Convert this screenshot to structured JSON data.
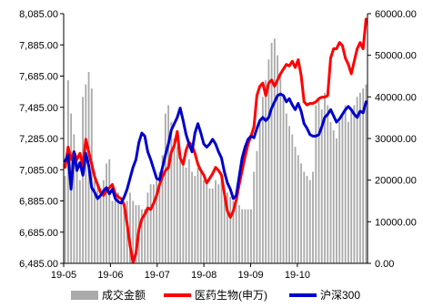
{
  "chart_data": {
    "type": "bar+line",
    "title": "",
    "x_tick_labels": [
      "19-05",
      "19-06",
      "19-07",
      "19-08",
      "19-09",
      "19-10"
    ],
    "y_left": {
      "min": 6485,
      "max": 8085,
      "ticks": [
        6485,
        6685,
        6885,
        7085,
        7285,
        7485,
        7685,
        7885,
        8085
      ],
      "tick_labels": [
        "6,485.00",
        "6,685.00",
        "6,885.00",
        "7,085.00",
        "7,285.00",
        "7,485.00",
        "7,685.00",
        "7,885.00",
        "8,085.00"
      ]
    },
    "y_right": {
      "min": 0,
      "max": 60000,
      "ticks": [
        0,
        10000,
        20000,
        30000,
        40000,
        50000,
        60000
      ],
      "tick_labels": [
        "0.00",
        "10000.00",
        "20000.00",
        "30000.00",
        "40000.00",
        "50000.00",
        "60000.00"
      ]
    },
    "legend": [
      {
        "name": "成交金额",
        "color": "#aaaaaa",
        "kind": "bar"
      },
      {
        "name": "医药生物(申万)",
        "color": "#ff0000",
        "kind": "line"
      },
      {
        "name": "沪深300",
        "color": "#0000cc",
        "kind": "line"
      }
    ],
    "legend_position": "bottom",
    "series": [
      {
        "name": "成交金额",
        "type": "bar",
        "axis": "right",
        "color": "#aaaaaa",
        "values": [
          21000,
          44000,
          36000,
          31000,
          25000,
          20000,
          40000,
          43000,
          46000,
          42000,
          22000,
          19000,
          18000,
          20000,
          24000,
          25000,
          15000,
          16000,
          17000,
          14000,
          13000,
          15000,
          17000,
          15000,
          14000,
          14000,
          13000,
          13000,
          17000,
          19000,
          19000,
          21000,
          22000,
          26000,
          36000,
          38000,
          34000,
          30000,
          28000,
          26000,
          24000,
          23000,
          25000,
          22000,
          21000,
          23000,
          22000,
          20000,
          19000,
          18000,
          18000,
          20000,
          19000,
          20000,
          17000,
          17000,
          16000,
          15000,
          14000,
          14000,
          13000,
          13000,
          13000,
          13000,
          22000,
          27000,
          34000,
          40000,
          44000,
          49000,
          53000,
          54000,
          50000,
          45000,
          40000,
          36000,
          33000,
          31000,
          28000,
          26000,
          24000,
          22000,
          21000,
          20000,
          22000,
          38000,
          40000,
          37000,
          41000,
          38000,
          34000,
          32000,
          30000,
          34000,
          36000,
          38000,
          34000,
          37000,
          38000,
          40000,
          41000,
          42000,
          43000
        ]
      },
      {
        "name": "医药生物(申万)",
        "type": "line",
        "axis": "left",
        "color": "#ff0000",
        "values": [
          7100,
          7230,
          7150,
          7200,
          7150,
          7190,
          7110,
          7280,
          7200,
          7120,
          7040,
          6990,
          6940,
          6920,
          6950,
          6970,
          6990,
          6930,
          6910,
          6900,
          6860,
          6740,
          6600,
          6490,
          6550,
          6700,
          6770,
          6800,
          6840,
          6830,
          6870,
          6920,
          6990,
          7040,
          7080,
          7100,
          7200,
          7240,
          7330,
          7160,
          7120,
          7210,
          7260,
          7240,
          7190,
          7120,
          7080,
          7050,
          7000,
          7030,
          7060,
          7100,
          7080,
          7050,
          6930,
          6820,
          6780,
          6820,
          6890,
          6990,
          7080,
          7170,
          7250,
          7300,
          7360,
          7560,
          7620,
          7640,
          7560,
          7640,
          7660,
          7620,
          7660,
          7700,
          7730,
          7760,
          7750,
          7780,
          7740,
          7790,
          7690,
          7520,
          7500,
          7510,
          7510,
          7520,
          7540,
          7550,
          7550,
          7560,
          7800,
          7860,
          7860,
          7900,
          7880,
          7800,
          7760,
          7700,
          7780,
          7860,
          7900,
          7860,
          8050
        ]
      },
      {
        "name": "沪深300",
        "type": "line",
        "axis": "left",
        "color": "#0000cc",
        "values": [
          7140,
          7180,
          6960,
          7200,
          7080,
          7130,
          7050,
          7190,
          7110,
          6970,
          6940,
          6900,
          6920,
          6950,
          6970,
          6930,
          6960,
          6900,
          6880,
          6870,
          6910,
          6960,
          7030,
          7100,
          7150,
          7260,
          7320,
          7300,
          7200,
          7150,
          7090,
          7030,
          7020,
          7100,
          7180,
          7250,
          7340,
          7380,
          7420,
          7480,
          7400,
          7310,
          7250,
          7200,
          7320,
          7380,
          7320,
          7250,
          7230,
          7250,
          7280,
          7250,
          7200,
          7160,
          7070,
          7000,
          6960,
          6900,
          6920,
          7040,
          7160,
          7230,
          7280,
          7300,
          7290,
          7350,
          7400,
          7420,
          7400,
          7420,
          7480,
          7520,
          7560,
          7570,
          7560,
          7520,
          7540,
          7500,
          7470,
          7510,
          7460,
          7380,
          7350,
          7310,
          7300,
          7300,
          7310,
          7360,
          7420,
          7440,
          7470,
          7430,
          7390,
          7410,
          7440,
          7470,
          7490,
          7470,
          7440,
          7420,
          7460,
          7450,
          7520
        ]
      }
    ]
  }
}
